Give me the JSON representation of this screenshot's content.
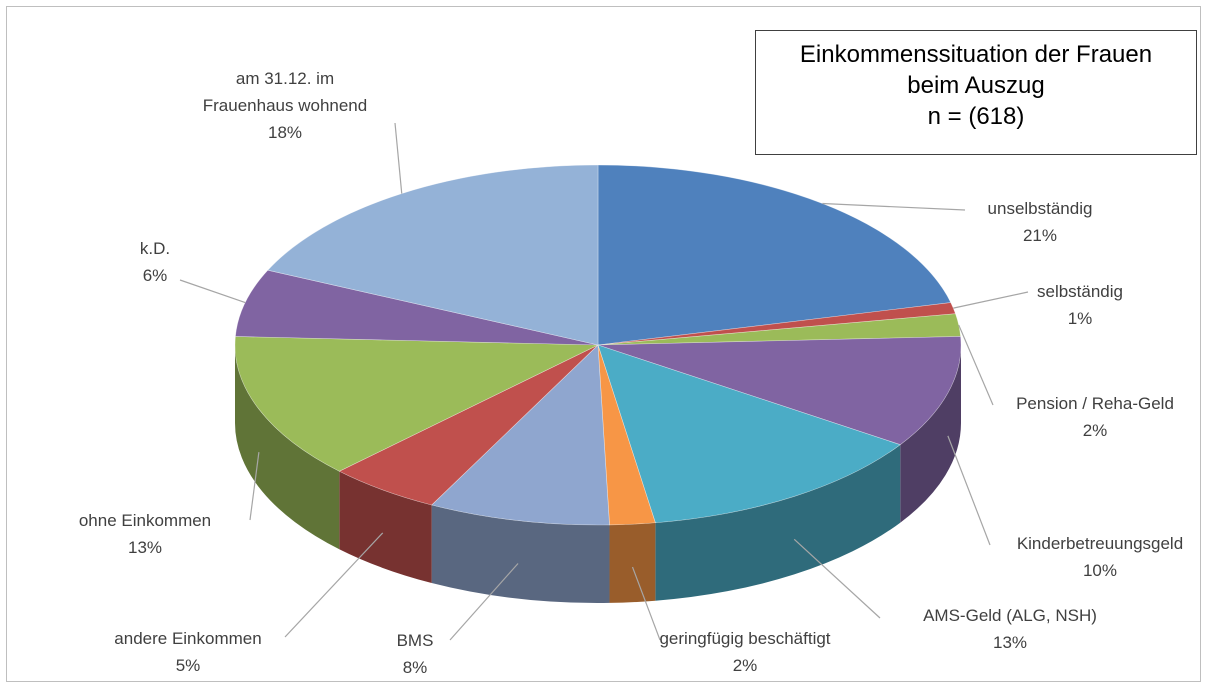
{
  "chart_data": {
    "type": "pie3d",
    "title": "Einkommenssituation der Frauen beim Auszug",
    "subtitle": "n = (618)",
    "categories": [
      "unselbständig",
      "selbständig",
      "Pension / Reha-Geld",
      "Kinderbetreuungsgeld",
      "AMS-Geld (ALG, NSH)",
      "geringfügig beschäftigt",
      "BMS",
      "andere Einkommen",
      "ohne Einkommen",
      "k.D.",
      "am 31.12. im Frauenhaus wohnend"
    ],
    "values": [
      21,
      1,
      2,
      10,
      13,
      2,
      8,
      5,
      13,
      6,
      18
    ],
    "value_labels": [
      "21%",
      "1%",
      "2%",
      "10%",
      "13%",
      "2%",
      "8%",
      "5%",
      "13%",
      "6%",
      "18%"
    ],
    "colors": [
      "#4f81bd",
      "#c0504d",
      "#9bbb59",
      "#8064a2",
      "#4bacc6",
      "#f79646",
      "#8fa6cf",
      "#c0504d",
      "#9bbb59",
      "#8064a2",
      "#94b2d7"
    ]
  }
}
